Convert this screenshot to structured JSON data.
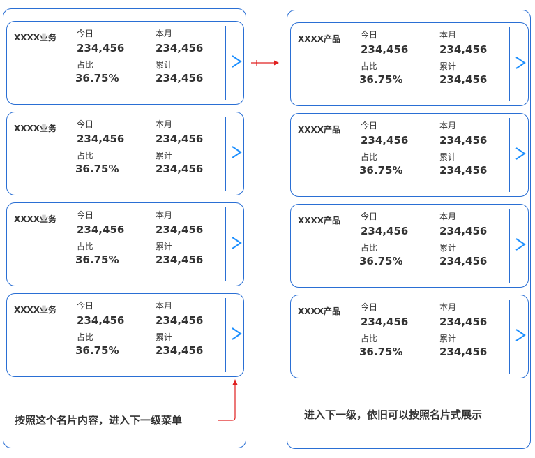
{
  "left_panel": {
    "cards": [
      {
        "name": "XXXX业务",
        "today_label": "今日",
        "today_value": "234,456",
        "month_label": "本月",
        "month_value": "234,456",
        "ratio_label": "占比",
        "ratio_value": "36.75%",
        "total_label": "累计",
        "total_value": "234,456",
        "arrow": ">"
      },
      {
        "name": "XXXX业务",
        "today_label": "今日",
        "today_value": "234,456",
        "month_label": "本月",
        "month_value": "234,456",
        "ratio_label": "占比",
        "ratio_value": "36.75%",
        "total_label": "累计",
        "total_value": "234,456",
        "arrow": ">"
      },
      {
        "name": "XXXX业务",
        "today_label": "今日",
        "today_value": "234,456",
        "month_label": "本月",
        "month_value": "234,456",
        "ratio_label": "占比",
        "ratio_value": "36.75%",
        "total_label": "累计",
        "total_value": "234,456",
        "arrow": ">"
      },
      {
        "name": "XXXX业务",
        "today_label": "今日",
        "today_value": "234,456",
        "month_label": "本月",
        "month_value": "234,456",
        "ratio_label": "占比",
        "ratio_value": "36.75%",
        "total_label": "累计",
        "total_value": "234,456",
        "arrow": ">"
      }
    ],
    "caption": "按照这个名片内容，进入下一级菜单"
  },
  "right_panel": {
    "cards": [
      {
        "name": "XXXX产品",
        "today_label": "今日",
        "today_value": "234,456",
        "month_label": "本月",
        "month_value": "234,456",
        "ratio_label": "占比",
        "ratio_value": "36.75%",
        "total_label": "累计",
        "total_value": "234,456",
        "arrow": ">"
      },
      {
        "name": "XXXX产品",
        "today_label": "今日",
        "today_value": "234,456",
        "month_label": "本月",
        "month_value": "234,456",
        "ratio_label": "占比",
        "ratio_value": "36.75%",
        "total_label": "累计",
        "total_value": "234,456",
        "arrow": ">"
      },
      {
        "name": "XXXX产品",
        "today_label": "今日",
        "today_value": "234,456",
        "month_label": "本月",
        "month_value": "234,456",
        "ratio_label": "占比",
        "ratio_value": "36.75%",
        "total_label": "累计",
        "total_value": "234,456",
        "arrow": ">"
      },
      {
        "name": "XXXX产品",
        "today_label": "今日",
        "today_value": "234,456",
        "month_label": "本月",
        "month_value": "234,456",
        "ratio_label": "占比",
        "ratio_value": "36.75%",
        "total_label": "累计",
        "total_value": "234,456",
        "arrow": ">"
      }
    ],
    "caption": "进入下一级，依旧可以按照名片式展示"
  },
  "colors": {
    "border": "#2a6fd4",
    "chevron": "#1e90ff",
    "annotation": "#e02020",
    "text": "#333333"
  }
}
